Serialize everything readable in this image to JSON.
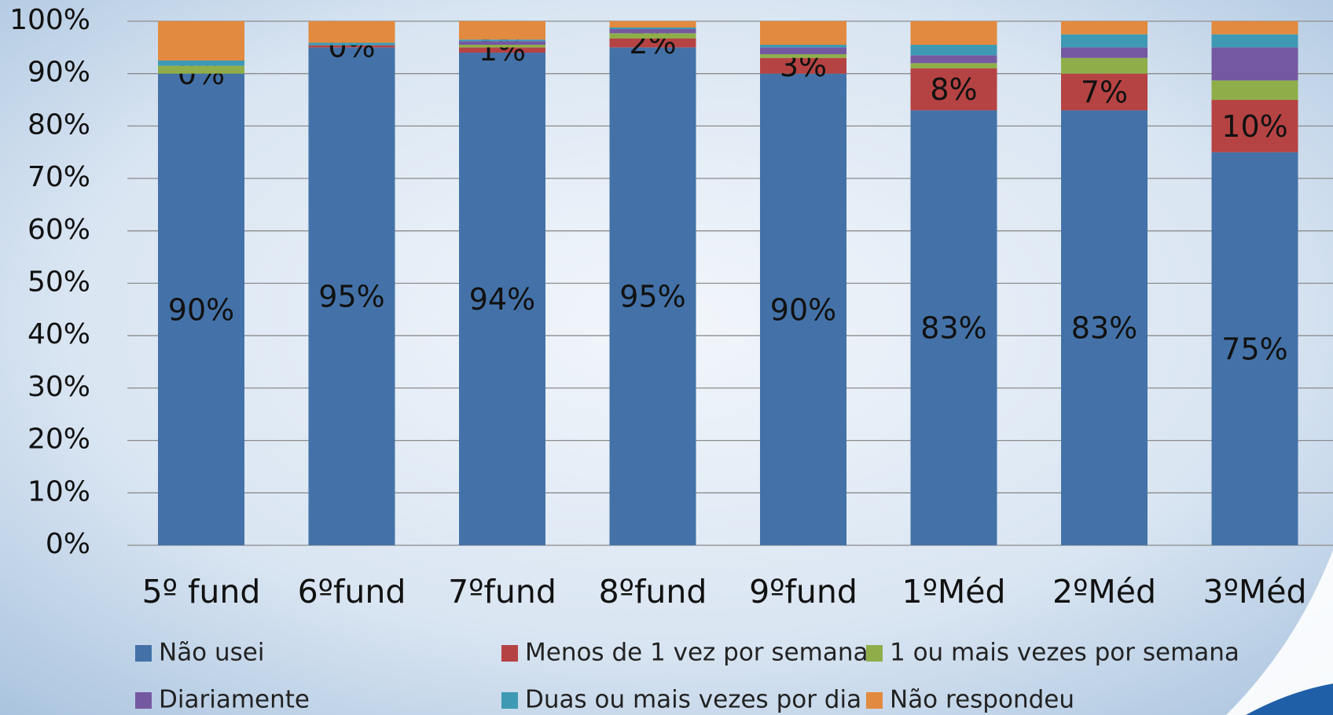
{
  "chart_data": {
    "type": "stacked_bar",
    "categories": [
      "5º fund",
      "6ºfund",
      "7ºfund",
      "8ºfund",
      "9ºfund",
      "1ºMéd",
      "2ºMéd",
      "3ºMéd"
    ],
    "series": [
      {
        "name": "Não usei",
        "color": "#4472a8",
        "values": [
          90,
          95,
          94,
          95,
          90,
          83,
          83,
          75
        ],
        "value_labels": [
          "90%",
          "95%",
          "94%",
          "95%",
          "90%",
          "83%",
          "83%",
          "75%"
        ]
      },
      {
        "name": "Menos de 1 vez por semana",
        "color": "#b64343",
        "values": [
          0,
          0.4,
          1,
          1.7,
          3,
          8,
          7,
          10
        ],
        "value_labels": [
          "0%",
          "0%",
          "1%",
          "2%",
          "3%",
          "8%",
          "7%",
          "10%"
        ]
      },
      {
        "name": "1 ou mais vezes por semana",
        "color": "#8fae4a",
        "values": [
          1.5,
          0,
          0.5,
          1,
          0.7,
          1,
          3,
          3.7
        ]
      },
      {
        "name": "Diariamente",
        "color": "#7559a0",
        "values": [
          0,
          0,
          0.7,
          0.8,
          1.3,
          1.5,
          2,
          6.3
        ]
      },
      {
        "name": "Duas ou mais vezes por dia",
        "color": "#3e9ab4",
        "values": [
          1,
          0.5,
          0.3,
          0.3,
          0.5,
          2,
          2.5,
          2.5
        ]
      },
      {
        "name": "Não respondeu",
        "color": "#e28a3f",
        "values": [
          7.5,
          4.1,
          3.5,
          1.2,
          4.5,
          4.5,
          2.5,
          2.5
        ]
      }
    ],
    "ylim": [
      0,
      100
    ],
    "yticks": [
      {
        "value": 0,
        "label": "0%"
      },
      {
        "value": 10,
        "label": "10%"
      },
      {
        "value": 20,
        "label": "20%"
      },
      {
        "value": 30,
        "label": "30%"
      },
      {
        "value": 40,
        "label": "40%"
      },
      {
        "value": 50,
        "label": "50%"
      },
      {
        "value": 60,
        "label": "60%"
      },
      {
        "value": 70,
        "label": "70%"
      },
      {
        "value": 80,
        "label": "80%"
      },
      {
        "value": 90,
        "label": "90%"
      },
      {
        "value": 100,
        "label": "100%"
      }
    ],
    "grid": true,
    "legend": "bottom"
  }
}
